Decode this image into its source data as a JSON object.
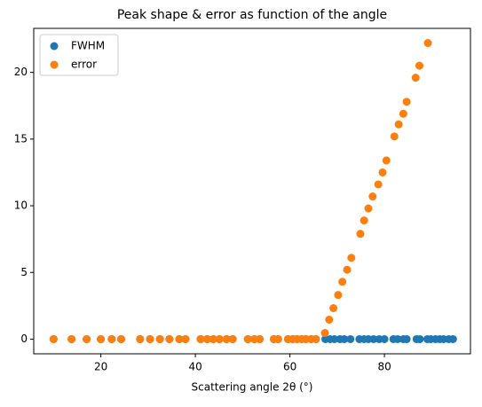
{
  "chart_data": {
    "type": "scatter",
    "title": "Peak shape & error as function of the angle",
    "x_label": "Scattering angle 2θ (°)",
    "xlim": [
      5.8,
      98.2
    ],
    "ylim": [
      -1.1,
      23.3
    ],
    "xticks": [
      20,
      40,
      60,
      80
    ],
    "yticks": [
      0,
      5,
      10,
      15,
      20
    ],
    "legend": "upper left",
    "series": [
      {
        "name": "FWHM",
        "color": "#1f77b4",
        "x": [
          10,
          13.8,
          17.0,
          20,
          22.3,
          24.3,
          28.3,
          30.4,
          32.5,
          34.5,
          36.6,
          37.9,
          41.1,
          42.5,
          43.8,
          45.1,
          46.6,
          47.9,
          51.1,
          52.5,
          53.6,
          56.6,
          57.5,
          59.6,
          60.6,
          61.5,
          62.5,
          63.4,
          64.5,
          65.5,
          67.5,
          68.5,
          69.4,
          70.6,
          71.5,
          72.8,
          74.7,
          75.7,
          76.6,
          77.7,
          78.9,
          80.0,
          81.9,
          82.8,
          84.0,
          84.7,
          86.8,
          87.5,
          89.1,
          89.8,
          90.8,
          91.7,
          92.5,
          93.6,
          94.5
        ],
        "values": [
          0,
          0,
          0,
          0,
          0,
          0,
          0,
          0,
          0,
          0,
          0,
          0,
          0,
          0,
          0,
          0,
          0,
          0,
          0,
          0,
          0,
          0,
          0,
          0,
          0,
          0,
          0,
          0,
          0,
          0,
          0,
          0,
          0,
          0,
          0,
          0,
          0,
          0,
          0,
          0,
          0,
          0,
          0,
          0,
          0,
          0,
          0,
          0,
          0,
          0,
          0,
          0,
          0,
          0,
          0
        ]
      },
      {
        "name": "error",
        "color": "#ff7f0e",
        "x": [
          10,
          13.8,
          17.0,
          20,
          22.3,
          24.3,
          28.3,
          30.4,
          32.5,
          34.5,
          36.6,
          37.9,
          41.1,
          42.5,
          43.8,
          45.1,
          46.6,
          47.9,
          51.1,
          52.5,
          53.6,
          56.6,
          57.5,
          59.6,
          60.6,
          61.5,
          62.5,
          63.4,
          64.5,
          65.5,
          67.4,
          68.3,
          69.2,
          70.2,
          71.1,
          72.1,
          73.0,
          74.9,
          75.7,
          76.6,
          77.5,
          78.7,
          79.6,
          80.4,
          82.1,
          83.0,
          84.0,
          84.7,
          86.6,
          87.4,
          89.2
        ],
        "values": [
          0,
          0,
          0,
          0,
          0,
          0,
          0,
          0,
          0,
          0,
          0,
          0,
          0,
          0,
          0,
          0,
          0,
          0,
          0,
          0,
          0,
          0,
          0,
          0,
          0,
          0,
          0,
          0,
          0,
          0,
          0.46,
          1.46,
          2.32,
          3.31,
          4.3,
          5.2,
          6.1,
          7.9,
          8.9,
          9.8,
          10.7,
          11.6,
          12.5,
          13.4,
          15.2,
          16.1,
          16.9,
          17.8,
          19.6,
          20.5,
          22.2
        ]
      }
    ]
  }
}
